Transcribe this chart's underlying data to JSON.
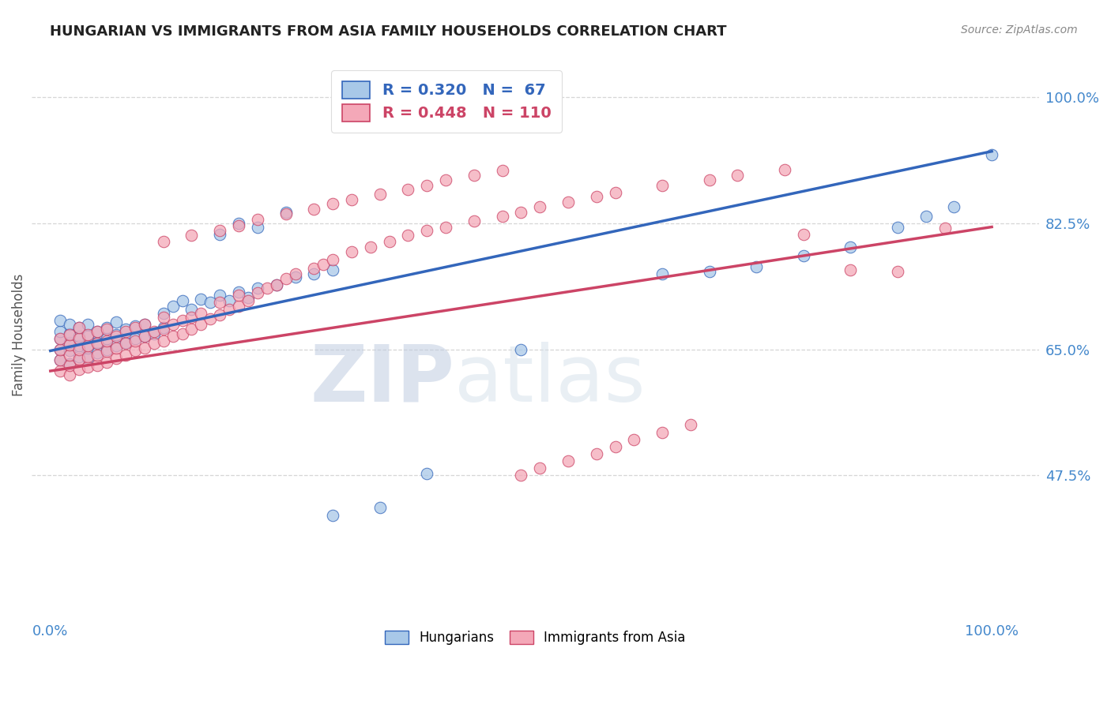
{
  "title": "HUNGARIAN VS IMMIGRANTS FROM ASIA FAMILY HOUSEHOLDS CORRELATION CHART",
  "source": "Source: ZipAtlas.com",
  "ylabel": "Family Households",
  "r_blue": 0.32,
  "n_blue": 67,
  "r_pink": 0.448,
  "n_pink": 110,
  "legend_labels": [
    "Hungarians",
    "Immigrants from Asia"
  ],
  "blue_color": "#a8c8e8",
  "pink_color": "#f4a8b8",
  "blue_line_color": "#3366bb",
  "pink_line_color": "#cc4466",
  "ytick_labels": [
    "100.0%",
    "82.5%",
    "65.0%",
    "47.5%"
  ],
  "ytick_values": [
    1.0,
    0.825,
    0.65,
    0.475
  ],
  "xtick_left_label": "0.0%",
  "xtick_right_label": "100.0%",
  "xlim": [
    -0.02,
    1.05
  ],
  "ylim": [
    0.28,
    1.06
  ],
  "watermark_zip": "ZIP",
  "watermark_atlas": "atlas",
  "title_color": "#222222",
  "axis_tick_color": "#4488cc",
  "grid_color": "#cccccc",
  "background_color": "#ffffff",
  "blue_line_x": [
    0.0,
    1.0
  ],
  "blue_line_y": [
    0.648,
    0.925
  ],
  "pink_line_x": [
    0.0,
    1.0
  ],
  "pink_line_y": [
    0.62,
    0.82
  ],
  "blue_points_x": [
    0.01,
    0.01,
    0.01,
    0.01,
    0.01,
    0.02,
    0.02,
    0.02,
    0.02,
    0.02,
    0.03,
    0.03,
    0.03,
    0.03,
    0.04,
    0.04,
    0.04,
    0.04,
    0.05,
    0.05,
    0.05,
    0.06,
    0.06,
    0.06,
    0.07,
    0.07,
    0.07,
    0.08,
    0.08,
    0.09,
    0.09,
    0.1,
    0.1,
    0.11,
    0.12,
    0.12,
    0.13,
    0.14,
    0.15,
    0.16,
    0.17,
    0.18,
    0.19,
    0.2,
    0.21,
    0.22,
    0.24,
    0.26,
    0.28,
    0.3,
    0.18,
    0.2,
    0.22,
    0.25,
    0.3,
    0.35,
    0.4,
    0.5,
    0.65,
    0.7,
    0.75,
    0.8,
    0.85,
    0.9,
    0.93,
    0.96,
    1.0
  ],
  "blue_points_y": [
    0.635,
    0.65,
    0.665,
    0.675,
    0.69,
    0.63,
    0.648,
    0.66,
    0.672,
    0.685,
    0.64,
    0.655,
    0.668,
    0.68,
    0.638,
    0.652,
    0.668,
    0.685,
    0.645,
    0.66,
    0.675,
    0.65,
    0.665,
    0.68,
    0.655,
    0.67,
    0.688,
    0.66,
    0.678,
    0.665,
    0.682,
    0.668,
    0.685,
    0.672,
    0.68,
    0.7,
    0.71,
    0.718,
    0.705,
    0.72,
    0.715,
    0.725,
    0.718,
    0.73,
    0.722,
    0.735,
    0.74,
    0.75,
    0.755,
    0.76,
    0.81,
    0.825,
    0.82,
    0.84,
    0.42,
    0.43,
    0.478,
    0.65,
    0.755,
    0.758,
    0.765,
    0.78,
    0.792,
    0.82,
    0.835,
    0.848,
    0.92
  ],
  "pink_points_x": [
    0.01,
    0.01,
    0.01,
    0.01,
    0.02,
    0.02,
    0.02,
    0.02,
    0.02,
    0.03,
    0.03,
    0.03,
    0.03,
    0.03,
    0.04,
    0.04,
    0.04,
    0.04,
    0.05,
    0.05,
    0.05,
    0.05,
    0.06,
    0.06,
    0.06,
    0.06,
    0.07,
    0.07,
    0.07,
    0.08,
    0.08,
    0.08,
    0.09,
    0.09,
    0.09,
    0.1,
    0.1,
    0.1,
    0.11,
    0.11,
    0.12,
    0.12,
    0.12,
    0.13,
    0.13,
    0.14,
    0.14,
    0.15,
    0.15,
    0.16,
    0.16,
    0.17,
    0.18,
    0.18,
    0.19,
    0.2,
    0.2,
    0.21,
    0.22,
    0.23,
    0.24,
    0.25,
    0.26,
    0.28,
    0.29,
    0.3,
    0.32,
    0.34,
    0.36,
    0.38,
    0.4,
    0.42,
    0.45,
    0.48,
    0.5,
    0.52,
    0.55,
    0.58,
    0.6,
    0.65,
    0.7,
    0.73,
    0.78,
    0.8,
    0.85,
    0.9,
    0.5,
    0.52,
    0.55,
    0.58,
    0.6,
    0.62,
    0.65,
    0.68,
    0.12,
    0.15,
    0.18,
    0.2,
    0.22,
    0.25,
    0.28,
    0.3,
    0.32,
    0.35,
    0.38,
    0.4,
    0.42,
    0.45,
    0.48,
    0.95
  ],
  "pink_points_y": [
    0.62,
    0.635,
    0.65,
    0.665,
    0.615,
    0.628,
    0.642,
    0.656,
    0.67,
    0.622,
    0.636,
    0.65,
    0.665,
    0.68,
    0.625,
    0.64,
    0.655,
    0.67,
    0.628,
    0.642,
    0.658,
    0.675,
    0.632,
    0.647,
    0.662,
    0.678,
    0.638,
    0.652,
    0.668,
    0.642,
    0.658,
    0.675,
    0.648,
    0.662,
    0.68,
    0.652,
    0.668,
    0.685,
    0.658,
    0.675,
    0.662,
    0.678,
    0.695,
    0.668,
    0.685,
    0.672,
    0.69,
    0.678,
    0.695,
    0.685,
    0.7,
    0.692,
    0.698,
    0.715,
    0.705,
    0.71,
    0.725,
    0.718,
    0.728,
    0.735,
    0.74,
    0.748,
    0.755,
    0.762,
    0.768,
    0.775,
    0.785,
    0.792,
    0.8,
    0.808,
    0.815,
    0.82,
    0.828,
    0.835,
    0.84,
    0.848,
    0.855,
    0.862,
    0.868,
    0.878,
    0.885,
    0.892,
    0.9,
    0.81,
    0.76,
    0.758,
    0.475,
    0.485,
    0.495,
    0.505,
    0.515,
    0.525,
    0.535,
    0.545,
    0.8,
    0.808,
    0.815,
    0.822,
    0.83,
    0.838,
    0.845,
    0.852,
    0.858,
    0.865,
    0.872,
    0.878,
    0.885,
    0.892,
    0.898,
    0.818
  ]
}
